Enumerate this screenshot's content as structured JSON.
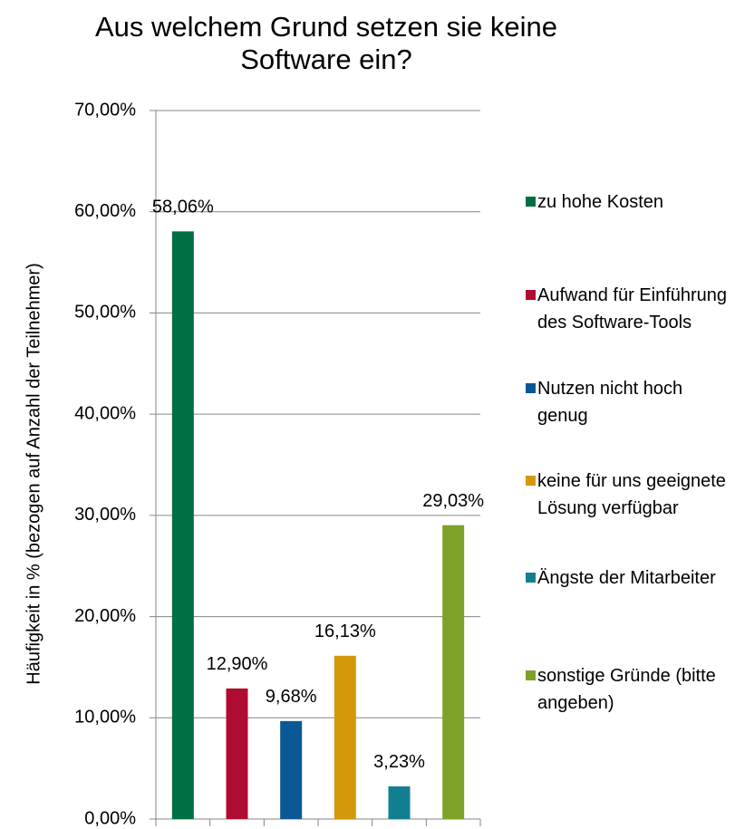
{
  "chart_data": {
    "type": "bar",
    "title": "Aus welchem Grund setzen sie keine Software ein?",
    "y_axis_label": "Häufigkeit in % (bezogen auf Anzahl der Teilnehmer)",
    "categories": [
      "zu hohe Kosten",
      "Aufwand für Einführung des Software-Tools",
      "Nutzen nicht hoch genug",
      "keine für uns geeignete Lösung verfügbar",
      "Ängste der Mitarbeiter",
      "sonstige Gründe (bitte angeben)"
    ],
    "values": [
      58.06,
      12.9,
      9.68,
      16.13,
      3.23,
      29.03
    ],
    "value_labels": [
      "58,06%",
      "12,90%",
      "9,68%",
      "16,13%",
      "3,23%",
      "29,03%"
    ],
    "colors": [
      "#006f44",
      "#af0c31",
      "#0a5996",
      "#d3990b",
      "#127f91",
      "#7ea12a"
    ],
    "ylim": [
      0,
      70
    ],
    "yticks": [
      {
        "value": 0,
        "label": "0,00%"
      },
      {
        "value": 10,
        "label": "10,00%"
      },
      {
        "value": 20,
        "label": "20,00%"
      },
      {
        "value": 30,
        "label": "30,00%"
      },
      {
        "value": 40,
        "label": "40,00%"
      },
      {
        "value": 50,
        "label": "50,00%"
      },
      {
        "value": 60,
        "label": "60,00%"
      },
      {
        "value": 70,
        "label": "70,00%"
      }
    ],
    "grid": true,
    "legend": "right"
  }
}
